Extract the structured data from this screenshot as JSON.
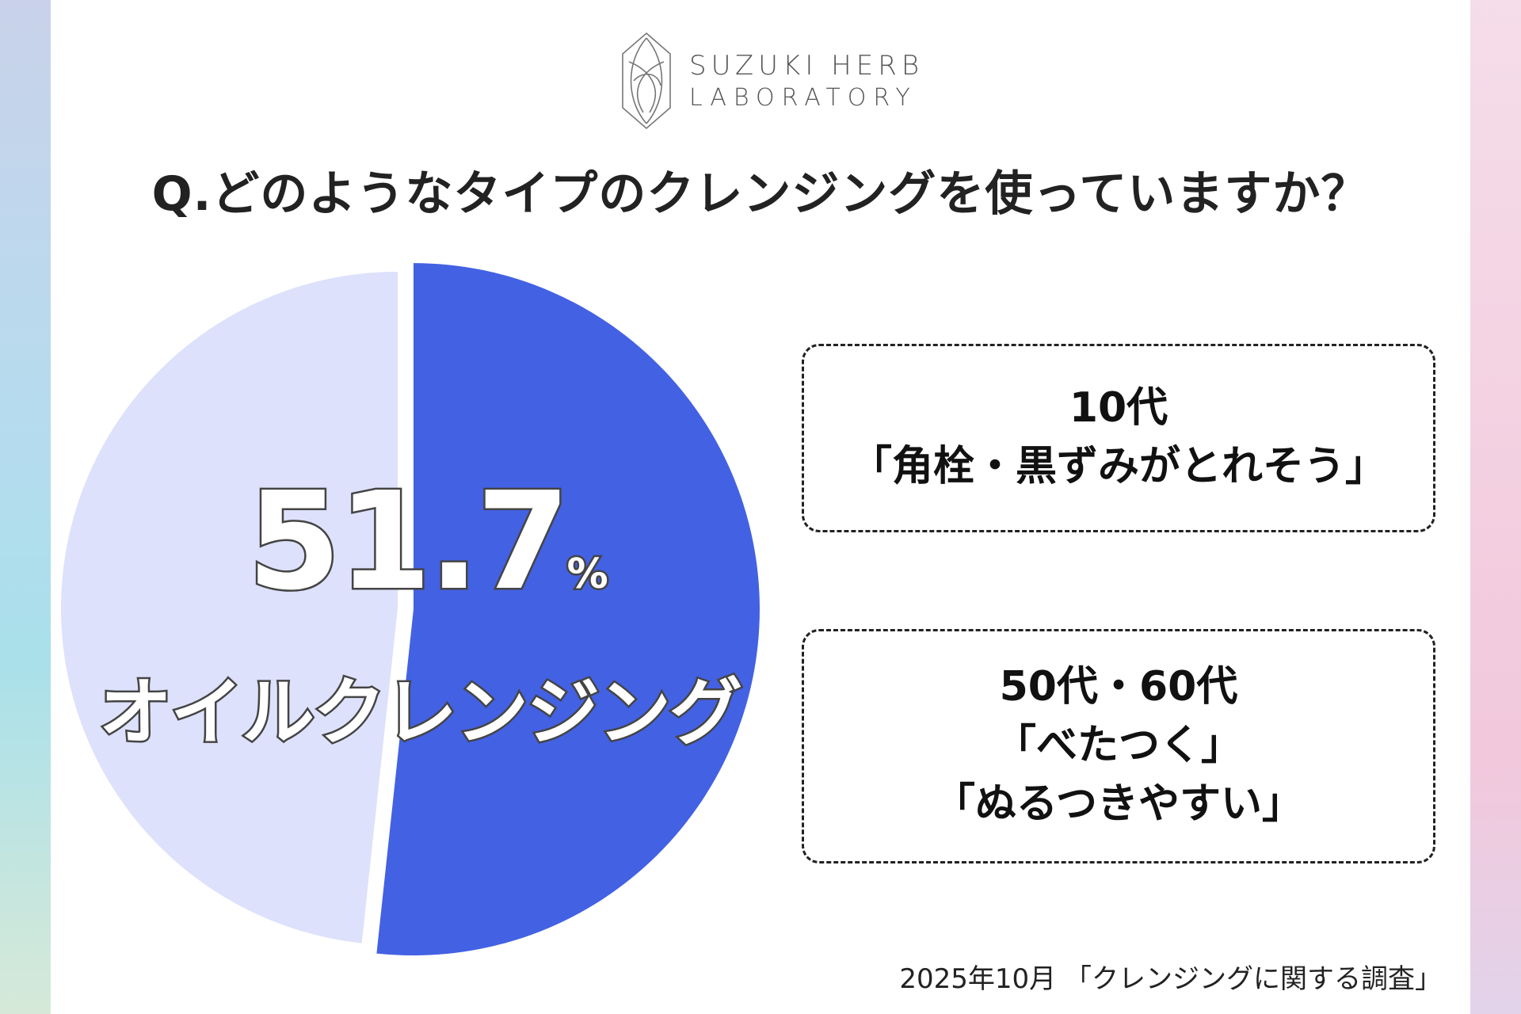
{
  "brand": {
    "name_line1": "SUZUKI HERB",
    "name_line2": "LABORATORY"
  },
  "question": "Q.どのようなタイプのクレンジングを使っていますか？",
  "chart_data": {
    "type": "pie",
    "slices": [
      {
        "label": "オイルクレンジング",
        "value": 51.7,
        "color": "#4361e3"
      },
      {
        "label": "",
        "value": 48.3,
        "color": "#dde1fb"
      }
    ],
    "highlight": {
      "value_text": "51.7",
      "unit": "%",
      "label": "オイルクレンジング"
    },
    "start_angle_deg": 0,
    "direction": "clockwise",
    "exploded_slice": 0,
    "legend": "none"
  },
  "callouts": [
    {
      "lines": [
        "10代",
        "「角栓・黒ずみがとれそう」"
      ]
    },
    {
      "lines": [
        "50代・60代",
        "「べたつく」",
        "「ぬるつきやすい」"
      ]
    }
  ],
  "footnote": "2025年10月 「クレンジングに関する調査」",
  "colors": {
    "accent": "#4361e3",
    "pie_rest": "#dde1fb",
    "text": "#222222"
  }
}
